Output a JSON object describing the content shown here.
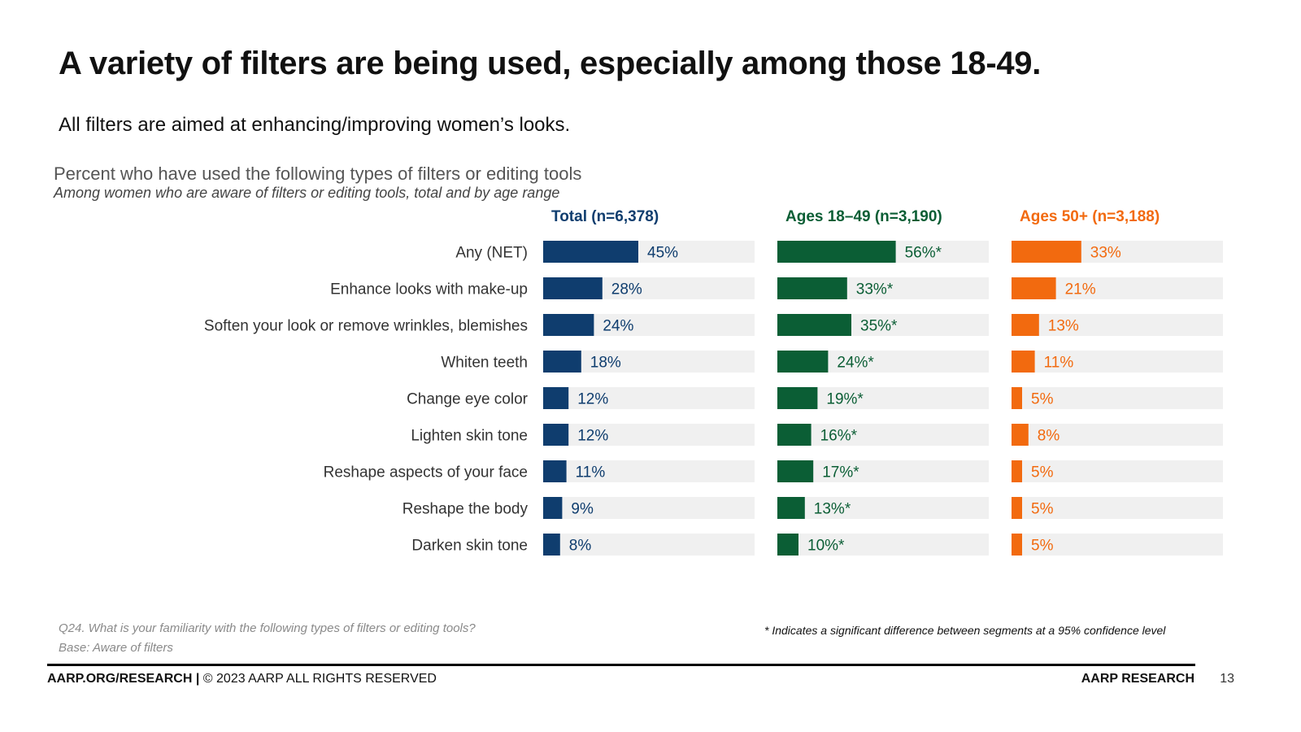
{
  "slide": {
    "title": "A variety of filters are being used, especially among those 18-49.",
    "subtitle": "All filters are aimed at enhancing/improving women’s looks."
  },
  "chart_data": {
    "type": "bar",
    "orientation": "horizontal",
    "title": "Percent who have used the following types of filters or editing tools",
    "subtitle": "Among women who are aware of filters or editing tools, total and by age range",
    "categories": [
      "Any (NET)",
      "Enhance looks with make-up",
      "Soften your look or remove wrinkles, blemishes",
      "Whiten teeth",
      "Change eye color",
      "Lighten skin tone",
      "Reshape aspects of your face",
      "Reshape the body",
      "Darken skin tone"
    ],
    "series": [
      {
        "name": "Total (n=6,378)",
        "color": "#0f3d6e",
        "values": [
          45,
          28,
          24,
          18,
          12,
          12,
          11,
          9,
          8
        ],
        "labels": [
          "45%",
          "28%",
          "24%",
          "18%",
          "12%",
          "12%",
          "11%",
          "9%",
          "8%"
        ]
      },
      {
        "name": "Ages 18–49 (n=3,190)",
        "color": "#0b5e35",
        "values": [
          56,
          33,
          35,
          24,
          19,
          16,
          17,
          13,
          10
        ],
        "labels": [
          "56%*",
          "33%*",
          "35%*",
          "24%*",
          "19%*",
          "16%*",
          "17%*",
          "13%*",
          "10%*"
        ]
      },
      {
        "name": "Ages 50+ (n=3,188)",
        "color": "#f26a0f",
        "values": [
          33,
          21,
          13,
          11,
          5,
          8,
          5,
          5,
          5
        ],
        "labels": [
          "33%",
          "21%",
          "13%",
          "11%",
          "5%",
          "8%",
          "5%",
          "5%",
          "5%"
        ]
      }
    ],
    "xlim": [
      0,
      100
    ],
    "track_color": "#f0f0f0",
    "grid": false,
    "legend": "column headers above each panel"
  },
  "footnotes": {
    "question": "Q24. What is your familiarity with the following types of filters or editing tools?",
    "base": "Base: Aware of filters",
    "significance": "* Indicates a significant difference between segments at a 95% confidence level"
  },
  "footer": {
    "site": "AARP.ORG/RESEARCH",
    "separator": " | ",
    "copyright": "© 2023 AARP ALL RIGHTS RESERVED",
    "brand": "AARP RESEARCH",
    "page_number": "13"
  }
}
